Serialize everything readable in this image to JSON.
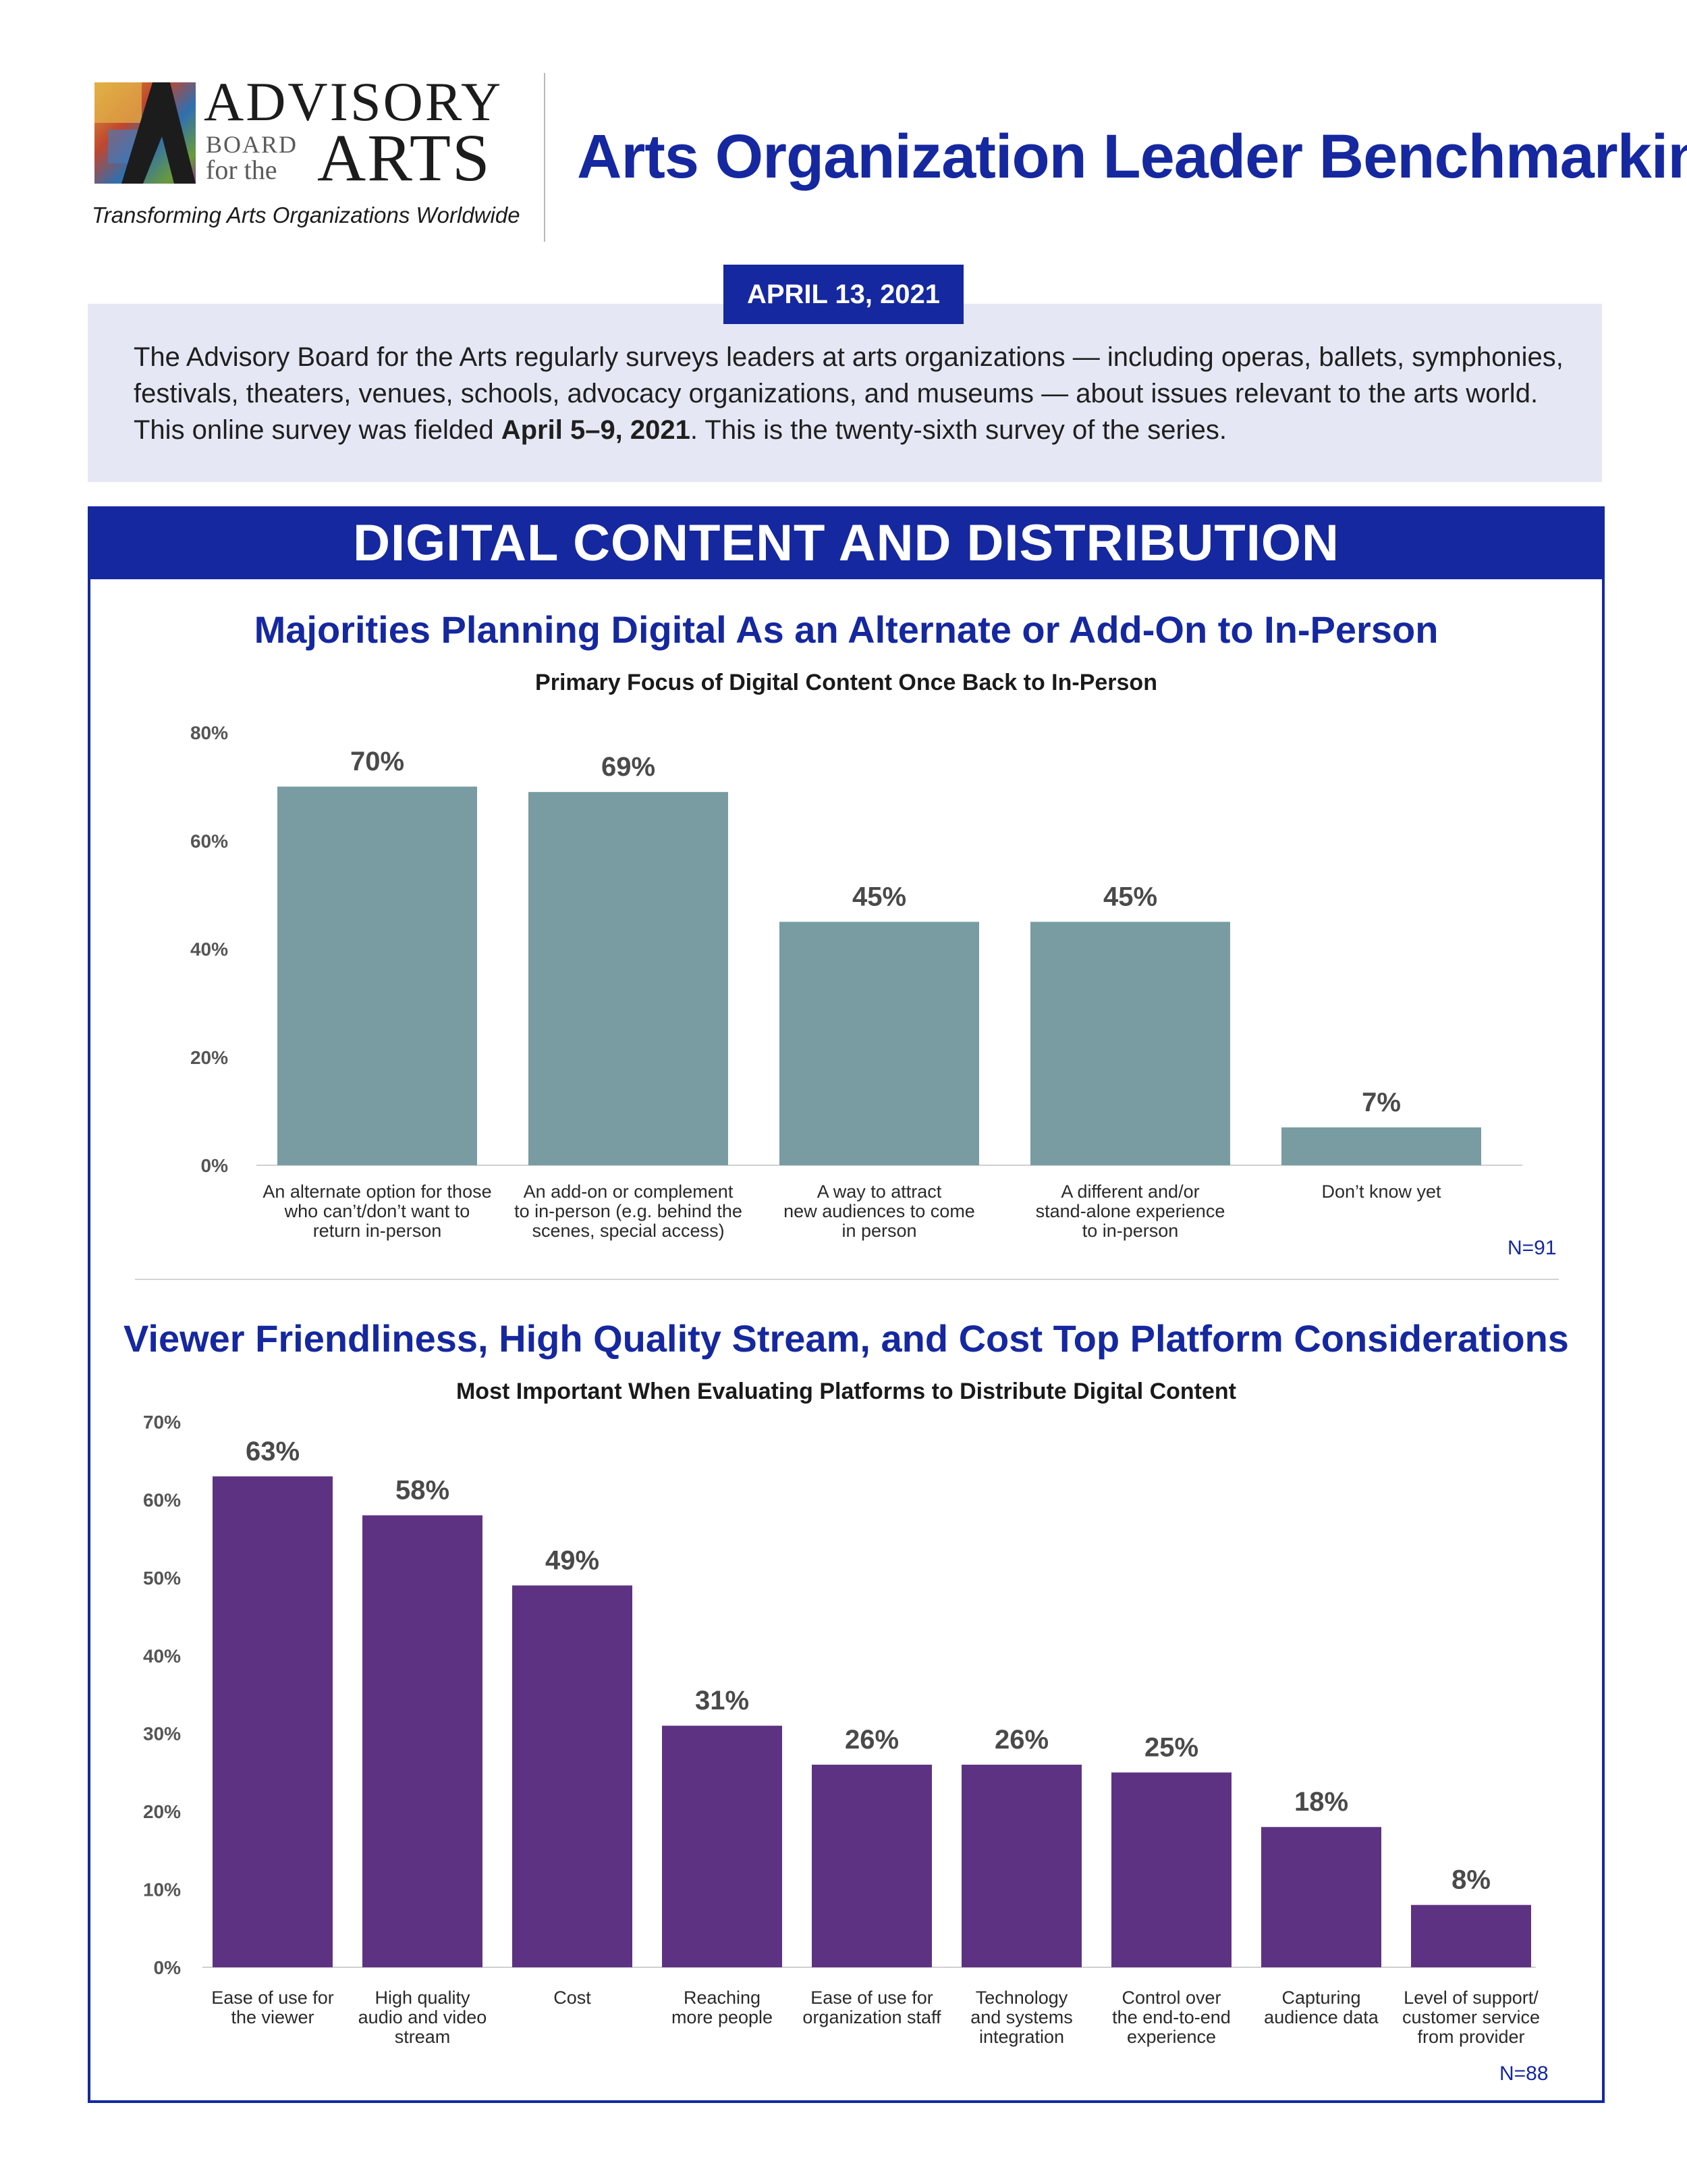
{
  "header": {
    "logo": {
      "line1": "ADVISORY",
      "line2": "BOARD",
      "line3": "for the",
      "line4": "ARTS",
      "tagline": "Transforming Arts Organizations Worldwide"
    },
    "title": "Arts Organization Leader Benchmarking"
  },
  "date": "APRIL 13, 2021",
  "intro": {
    "part1": "The Advisory Board for the Arts regularly surveys leaders at arts organizations — including  operas, ballets, symphonies, festivals, theaters, venues, schools, advocacy organizations, and museums — about issues relevant to the arts world. This online survey was fielded ",
    "bold": "April 5–9, 2021",
    "part2": ". This is the twenty-sixth survey of the series."
  },
  "section_title": "DIGITAL CONTENT AND DISTRIBUTION",
  "colors": {
    "brand": "#1528a0",
    "bar1": "#789ca2",
    "bar2": "#5e3282",
    "intro_bg": "#e5e8f4"
  },
  "chart_data": [
    {
      "type": "bar",
      "title": "Majorities Planning Digital As an Alternate or Add-On to In-Person",
      "subtitle": "Primary Focus of Digital Content Once Back to In-Person",
      "xlabel": "",
      "ylabel": "",
      "ylim": [
        0,
        80
      ],
      "yticks": [
        0,
        20,
        40,
        60,
        80
      ],
      "ytick_labels": [
        "0%",
        "20%",
        "40%",
        "60%",
        "80%"
      ],
      "categories": [
        [
          "An alternate option for those",
          "who can’t/don’t want to",
          "return in-person"
        ],
        [
          "An add-on or complement",
          "to in-person (e.g. behind the",
          "scenes, special access)"
        ],
        [
          "A way to attract",
          "new audiences to come",
          "in person"
        ],
        [
          "A different and/or",
          "stand-alone experience",
          "to in-person"
        ],
        [
          "Don’t know yet"
        ]
      ],
      "values": [
        70,
        69,
        45,
        45,
        7
      ],
      "value_labels": [
        "70%",
        "69%",
        "45%",
        "45%",
        "7%"
      ],
      "n_label": "N=91",
      "grid": false
    },
    {
      "type": "bar",
      "title": "Viewer Friendliness, High Quality Stream, and Cost Top Platform Considerations",
      "subtitle": "Most Important When Evaluating Platforms to Distribute Digital Content",
      "xlabel": "",
      "ylabel": "",
      "ylim": [
        0,
        70
      ],
      "yticks": [
        0,
        10,
        20,
        30,
        40,
        50,
        60,
        70
      ],
      "ytick_labels": [
        "0%",
        "10%",
        "20%",
        "30%",
        "40%",
        "50%",
        "60%",
        "70%"
      ],
      "categories": [
        [
          "Ease of use for",
          "the viewer"
        ],
        [
          "High quality",
          "audio and video",
          "stream"
        ],
        [
          "Cost"
        ],
        [
          "Reaching",
          "more people"
        ],
        [
          "Ease of use for",
          "organization staff"
        ],
        [
          "Technology",
          "and systems",
          "integration"
        ],
        [
          "Control over",
          "the end-to-end",
          "experience"
        ],
        [
          "Capturing",
          "audience data"
        ],
        [
          "Level of support/",
          "customer service",
          "from provider"
        ]
      ],
      "values": [
        63,
        58,
        49,
        31,
        26,
        26,
        25,
        18,
        8
      ],
      "value_labels": [
        "63%",
        "58%",
        "49%",
        "31%",
        "26%",
        "26%",
        "25%",
        "18%",
        "8%"
      ],
      "n_label": "N=88",
      "grid": false
    }
  ]
}
